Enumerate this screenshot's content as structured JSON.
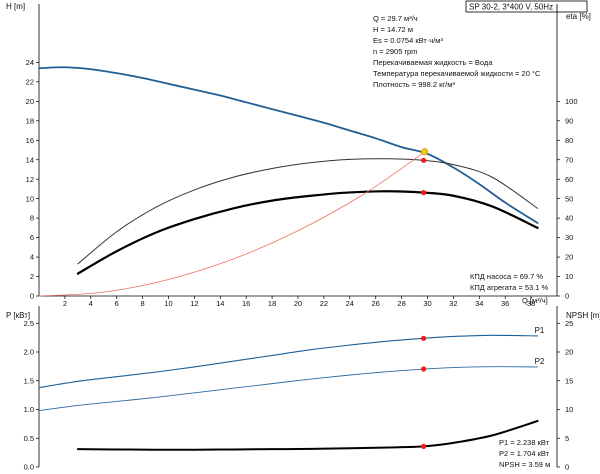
{
  "header": {
    "title": "SP 30-2, 3*400 V, 50Hz"
  },
  "colors": {
    "head": "#1f5f96",
    "eta_pump": "#333333",
    "eta_unit": "#000000",
    "system": "#f07060",
    "p1": "#1f5f96",
    "p2": "#2d6aa0",
    "npsh": "#000000",
    "marker": "#ee1c1c",
    "duty_marker": "#f5c518",
    "axis": "#000000"
  },
  "info": {
    "lines": [
      "Q = 29.7 м³/ч",
      "H = 14.72 м",
      "Es = 0.0754 кВт·ч/м³",
      "n = 2905 rpm",
      "Перекачиваемая жидкость = Вода",
      "Температура перекачиваемой жидкости = 20 °C",
      "Плотность = 998.2 кг/м³"
    ]
  },
  "efficiency": {
    "pump": "КПД насоса = 69.7 %",
    "unit": "КПД агрегата = 53.1 %"
  },
  "power_info": {
    "p1": "P1 = 2.238 кВт",
    "p2": "P2 = 1.704 кВт",
    "npsh": "NPSH = 3.59 м"
  },
  "chart_data": [
    {
      "type": "line",
      "title": "",
      "xlabel": "Q [м³/ч]",
      "ylabel": "H [m]",
      "y2label": "eta [%]",
      "xlim": [
        0,
        40
      ],
      "ylim": [
        0,
        30
      ],
      "y2lim": [
        0,
        150
      ],
      "xticks": [
        2,
        4,
        6,
        8,
        10,
        12,
        14,
        16,
        18,
        20,
        22,
        24,
        26,
        28,
        30,
        32,
        34,
        36,
        38
      ],
      "yticks": [
        0,
        2,
        4,
        6,
        8,
        10,
        12,
        14,
        16,
        18,
        20,
        22,
        24
      ],
      "y2ticks": [
        0,
        10,
        20,
        30,
        40,
        50,
        60,
        70,
        80,
        90,
        100
      ],
      "grid": false,
      "series": [
        {
          "name": "",
          "key": "head",
          "axis": "left",
          "x": [
            0,
            2,
            4,
            6,
            8,
            10,
            12,
            14,
            16,
            18,
            20,
            22,
            24,
            26,
            28,
            30,
            32,
            34,
            36,
            38.5
          ],
          "y": [
            23.4,
            23.5,
            23.3,
            22.9,
            22.4,
            21.8,
            21.2,
            20.6,
            19.9,
            19.2,
            18.5,
            17.8,
            17.0,
            16.2,
            15.3,
            14.6,
            13.2,
            11.5,
            9.6,
            7.5
          ]
        },
        {
          "name": "",
          "key": "eta_pump",
          "axis": "right",
          "x": [
            3,
            6,
            9,
            12,
            15,
            18,
            21,
            24,
            27,
            29.7,
            32,
            35,
            38.5
          ],
          "y": [
            16.5,
            33,
            45.5,
            54.5,
            61,
            65.5,
            68.5,
            70.2,
            70.5,
            69.7,
            67.5,
            61,
            45
          ]
        },
        {
          "name": "",
          "key": "eta_unit",
          "axis": "right",
          "x": [
            3,
            6,
            9,
            12,
            15,
            18,
            21,
            24,
            27,
            29.7,
            32,
            35,
            38.5
          ],
          "y": [
            11.5,
            23,
            32.5,
            39.5,
            45,
            49,
            51.5,
            53.2,
            53.8,
            53.1,
            51.5,
            46,
            35
          ]
        },
        {
          "name": "",
          "key": "system",
          "axis": "left",
          "x": [
            0,
            5,
            10,
            15,
            20,
            25,
            29.7
          ],
          "y": [
            0,
            0.4,
            1.7,
            3.8,
            6.7,
            10.4,
            14.72
          ]
        }
      ],
      "points": [
        {
          "x": 29.7,
          "y": 14.72,
          "kind": "duty"
        },
        {
          "x": 29.7,
          "y": 13.94,
          "kind": "marker"
        },
        {
          "x": 29.7,
          "y": 10.62,
          "kind": "marker"
        }
      ]
    },
    {
      "type": "line",
      "title": "",
      "xlabel": "",
      "ylabel": "P [кВт]",
      "y2label": "NPSH [m]",
      "xlim": [
        0,
        40
      ],
      "ylim": [
        0,
        2.8
      ],
      "y2lim": [
        0,
        28
      ],
      "yticks": [
        0.0,
        0.5,
        1.0,
        1.5,
        2.0,
        2.5
      ],
      "y2ticks": [
        0,
        5,
        10,
        15,
        20,
        25
      ],
      "grid": false,
      "series": [
        {
          "name": "P1",
          "key": "p1",
          "axis": "left",
          "x": [
            0,
            3,
            6,
            9,
            12,
            15,
            18,
            21,
            24,
            27,
            29.7,
            32,
            35,
            38.5
          ],
          "y": [
            1.38,
            1.49,
            1.57,
            1.65,
            1.74,
            1.84,
            1.94,
            2.04,
            2.12,
            2.19,
            2.238,
            2.27,
            2.29,
            2.28
          ]
        },
        {
          "name": "P2",
          "key": "p2",
          "axis": "left",
          "x": [
            0,
            3,
            6,
            9,
            12,
            15,
            18,
            21,
            24,
            27,
            29.7,
            32,
            35,
            38.5
          ],
          "y": [
            0.98,
            1.07,
            1.14,
            1.21,
            1.29,
            1.37,
            1.45,
            1.53,
            1.6,
            1.66,
            1.704,
            1.73,
            1.745,
            1.74
          ]
        },
        {
          "name": "",
          "key": "npsh",
          "axis": "right",
          "x": [
            3,
            6,
            9,
            12,
            15,
            18,
            21,
            24,
            27,
            29.7,
            32,
            35,
            38.5
          ],
          "y": [
            3.1,
            3.05,
            3.0,
            3.0,
            3.05,
            3.1,
            3.15,
            3.25,
            3.4,
            3.59,
            4.2,
            5.5,
            8.0
          ]
        }
      ],
      "points": [
        {
          "x": 29.7,
          "y": 2.238,
          "axis": "left",
          "kind": "marker"
        },
        {
          "x": 29.7,
          "y": 1.704,
          "axis": "left",
          "kind": "marker"
        },
        {
          "x": 29.7,
          "y": 3.59,
          "axis": "right",
          "kind": "marker"
        }
      ]
    }
  ]
}
